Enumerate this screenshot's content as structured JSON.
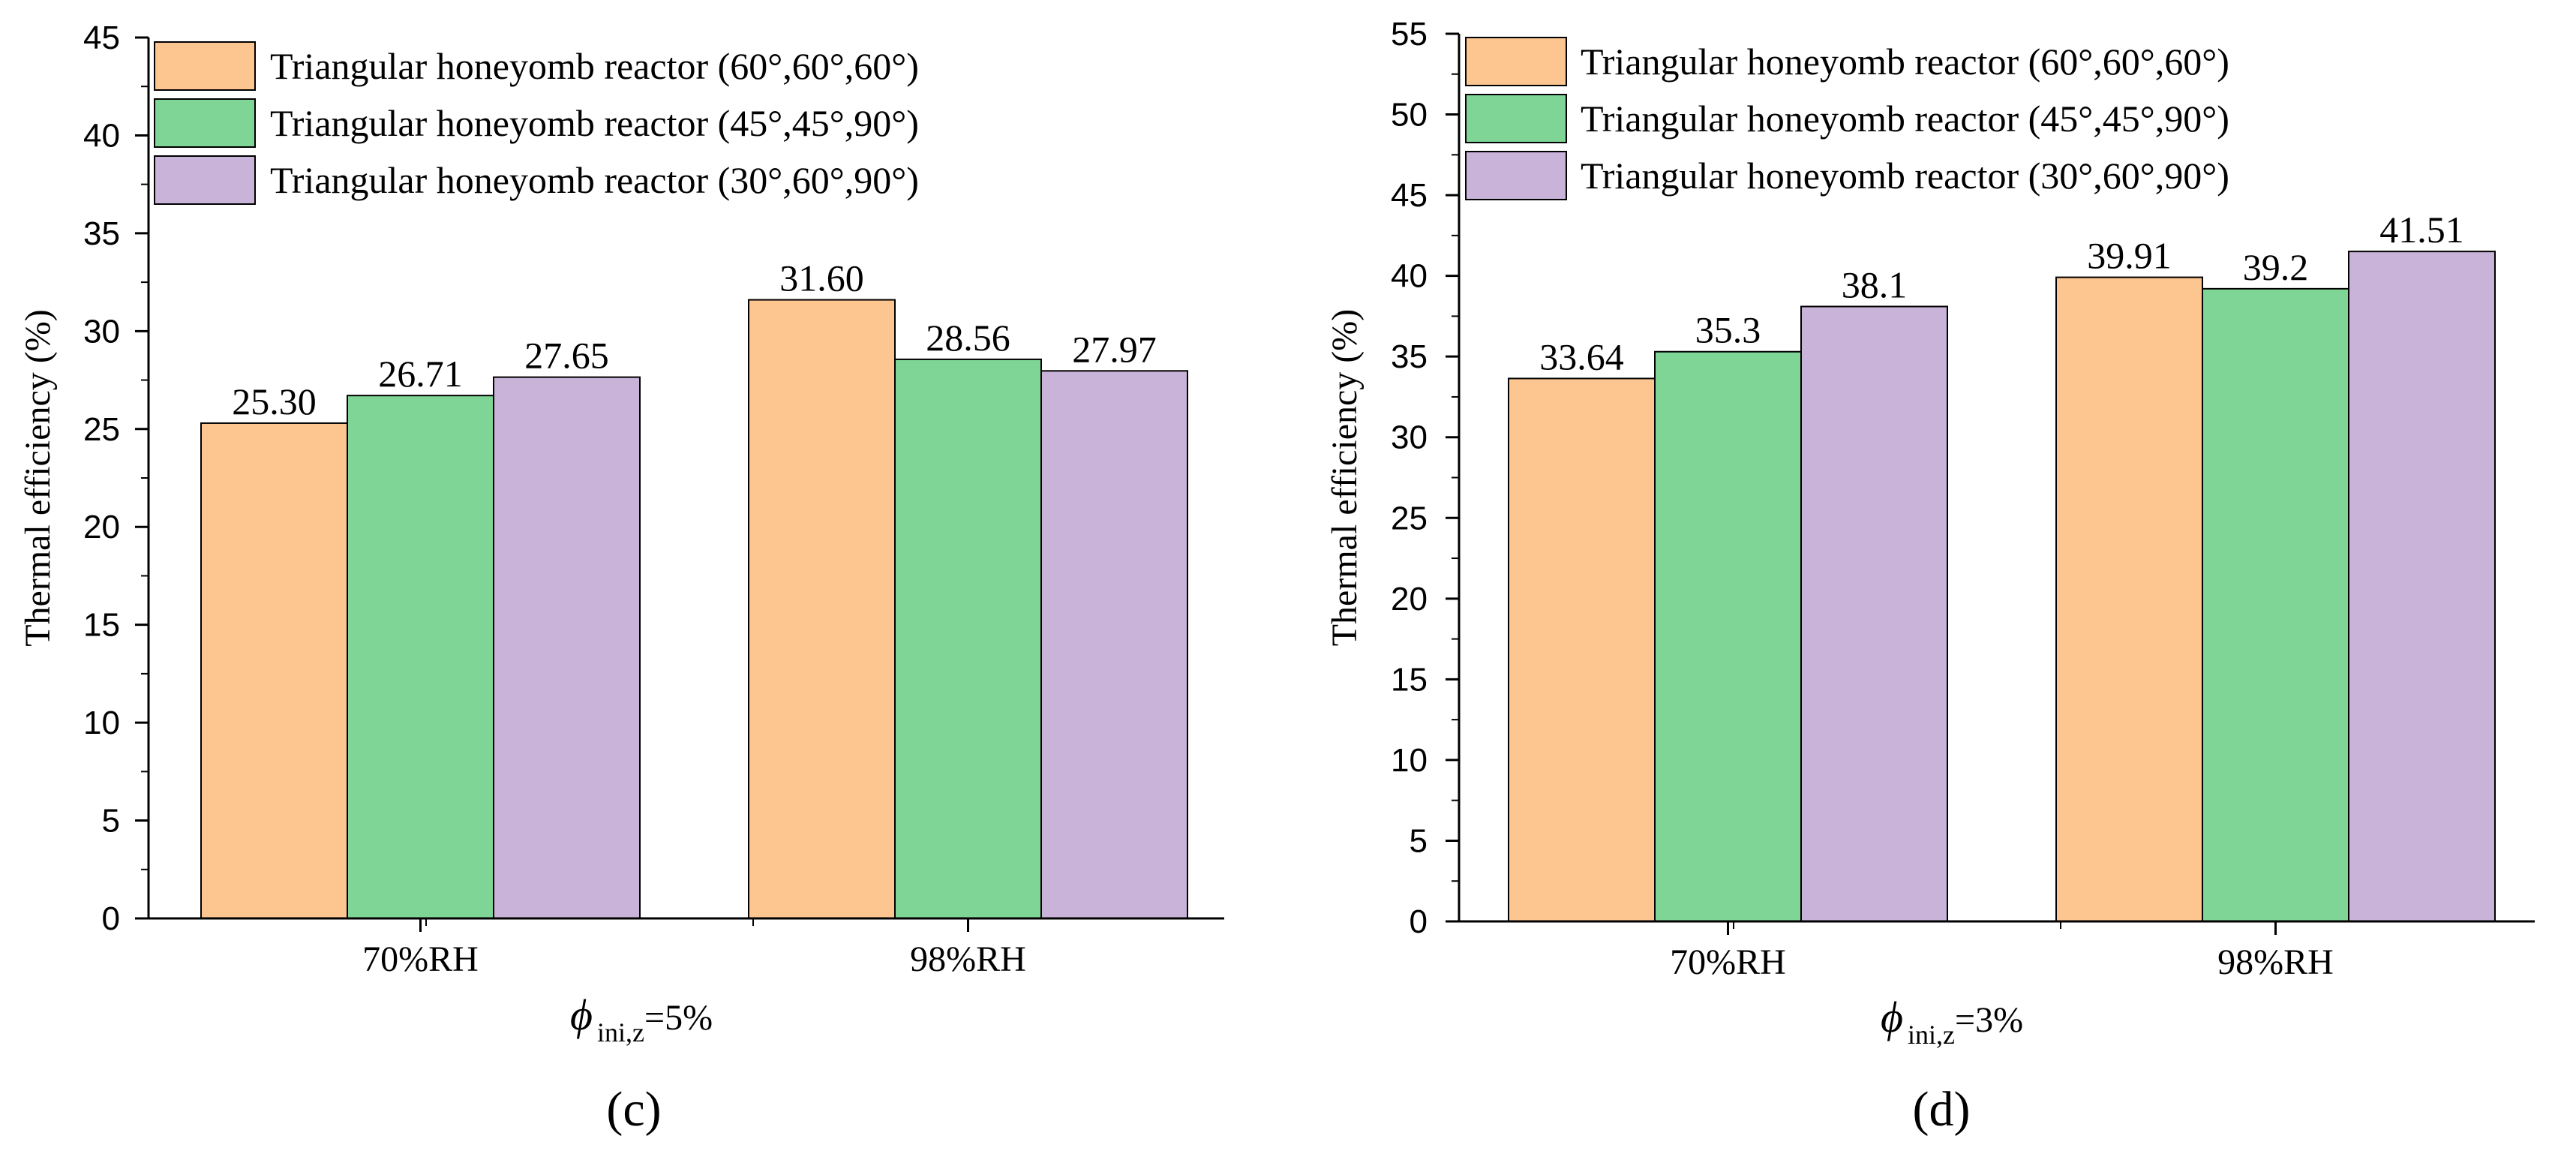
{
  "chart_data": [
    {
      "type": "bar",
      "panel_label": "(c)",
      "title": "",
      "xlabel": {
        "symbol": "ϕ",
        "subscript": "ini,z",
        "suffix": "=5%"
      },
      "ylabel": "Thermal efficiency (%)",
      "ylim": [
        0,
        45
      ],
      "ytick_step": 5,
      "yticks": [
        "0",
        "5",
        "10",
        "15",
        "20",
        "25",
        "30",
        "35",
        "40",
        "45"
      ],
      "categories": [
        "70%RH",
        "98%RH"
      ],
      "series": [
        {
          "name": "Triangular honeyomb reactor (60°,60°,60°)",
          "color": "#FDC690",
          "values": [
            25.3,
            31.6
          ],
          "labels": [
            "25.30",
            "31.60"
          ]
        },
        {
          "name": "Triangular honeyomb reactor (45°,45°,90°)",
          "color": "#7FD596",
          "values": [
            26.71,
            28.56
          ],
          "labels": [
            "26.71",
            "28.56"
          ]
        },
        {
          "name": "Triangular honeyomb reactor (30°,60°,90°)",
          "color": "#C9B3D9",
          "values": [
            27.65,
            27.97
          ],
          "labels": [
            "27.65",
            "27.97"
          ]
        }
      ],
      "legend": "top-left"
    },
    {
      "type": "bar",
      "panel_label": "(d)",
      "title": "",
      "xlabel": {
        "symbol": "ϕ",
        "subscript": "ini,z",
        "suffix": "=3%"
      },
      "ylabel": "Thermal efficiency (%)",
      "ylim": [
        0,
        55
      ],
      "ytick_step": 5,
      "yticks": [
        "0",
        "5",
        "10",
        "15",
        "20",
        "25",
        "30",
        "35",
        "40",
        "45",
        "50",
        "55"
      ],
      "categories": [
        "70%RH",
        "98%RH"
      ],
      "series": [
        {
          "name": "Triangular honeyomb reactor (60°,60°,60°)",
          "color": "#FDC690",
          "values": [
            33.64,
            39.91
          ],
          "labels": [
            "33.64",
            "39.91"
          ]
        },
        {
          "name": "Triangular honeyomb reactor (45°,45°,90°)",
          "color": "#7FD596",
          "values": [
            35.3,
            39.2
          ],
          "labels": [
            "35.3",
            "39.2"
          ]
        },
        {
          "name": "Triangular honeyomb reactor (30°,60°,90°)",
          "color": "#C9B3D9",
          "values": [
            38.1,
            41.51
          ],
          "labels": [
            "38.1",
            "41.51"
          ]
        }
      ],
      "legend": "top-left"
    }
  ]
}
